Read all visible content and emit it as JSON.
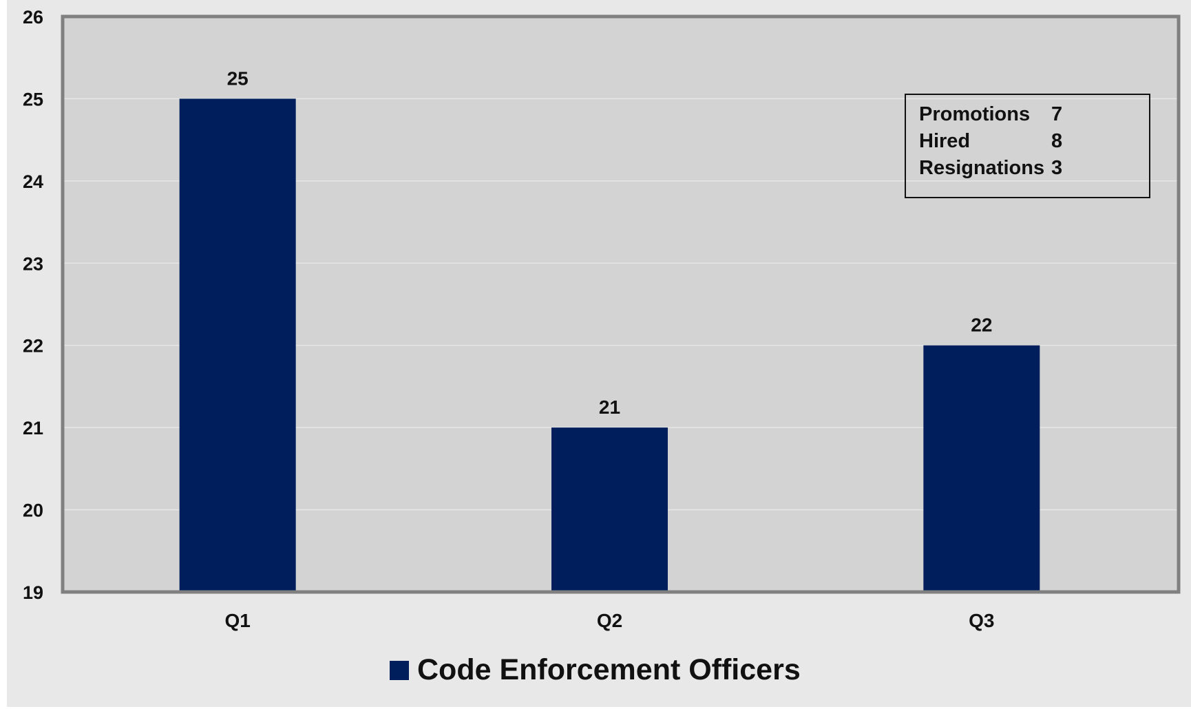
{
  "chart_data": {
    "type": "bar",
    "categories": [
      "Q1",
      "Q2",
      "Q3"
    ],
    "series": [
      {
        "name": "Code Enforcement Officers",
        "values": [
          25,
          21,
          22
        ],
        "color": "#001e5c"
      }
    ],
    "ylim": [
      19,
      26
    ],
    "yticks": [
      19,
      20,
      21,
      22,
      23,
      24,
      25,
      26
    ],
    "grid": true,
    "legend_position": "bottom-center",
    "plot_background": "#d3d3d3",
    "outer_background": "#e8e8e8",
    "annotation": {
      "position": "top-right",
      "rows": [
        {
          "label": "Promotions",
          "value": "7"
        },
        {
          "label": "Hired",
          "value": "8"
        },
        {
          "label": "Resignations",
          "value": "3"
        }
      ]
    }
  }
}
